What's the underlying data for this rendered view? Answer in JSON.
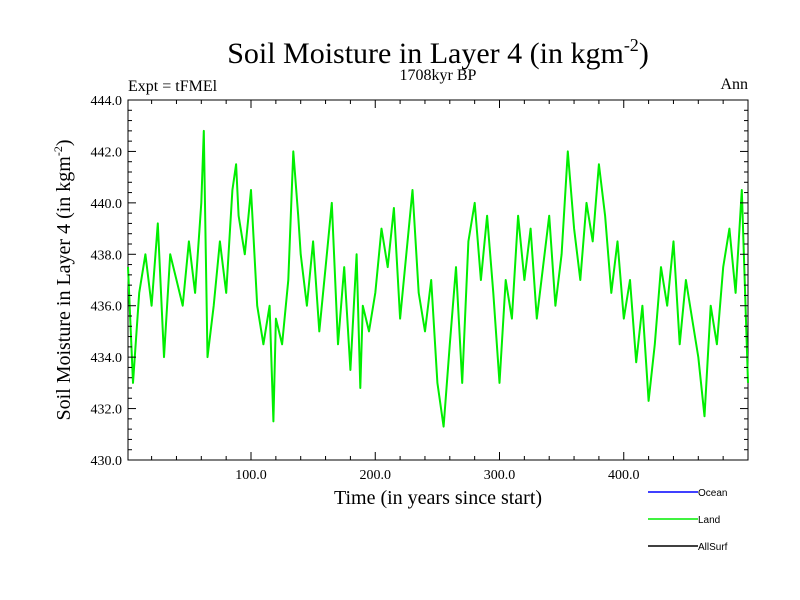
{
  "chart_data": {
    "type": "line",
    "title": "Soil Moisture in Layer 4 (in kgm",
    "title_sup": "-2",
    "title_end": ")",
    "subtitle": "1708kyr BP",
    "left_label": "Expt = tFMEl",
    "right_label": "Ann",
    "xlabel": "Time (in years since start)",
    "ylabel": "Soil Moisture in Layer 4 (in kgm",
    "ylabel_sup": "-2",
    "ylabel_end": ")",
    "xlim": [
      1,
      500
    ],
    "ylim": [
      430.0,
      444.0
    ],
    "x_ticks": [
      100,
      200,
      300,
      400
    ],
    "x_tick_labels": [
      "100.0",
      "200.0",
      "300.0",
      "400.0"
    ],
    "y_ticks": [
      430,
      432,
      434,
      436,
      438,
      440,
      442,
      444
    ],
    "y_tick_labels": [
      "430.0",
      "432.0",
      "434.0",
      "436.0",
      "438.0",
      "440.0",
      "442.0",
      "444.0"
    ],
    "grid": false,
    "legend": [
      {
        "name": "Ocean",
        "color": "#0000ff"
      },
      {
        "name": "Land",
        "color": "#00ee00"
      },
      {
        "name": "AllSurf",
        "color": "#000000"
      }
    ],
    "series": [
      {
        "name": "Land",
        "color": "#00ee00",
        "x": [
          1,
          5,
          10,
          15,
          20,
          25,
          30,
          35,
          40,
          45,
          50,
          55,
          60,
          62,
          65,
          70,
          75,
          80,
          85,
          88,
          90,
          95,
          100,
          105,
          110,
          115,
          118,
          120,
          125,
          130,
          134,
          138,
          140,
          145,
          150,
          155,
          160,
          165,
          170,
          175,
          180,
          185,
          188,
          190,
          195,
          200,
          205,
          210,
          215,
          220,
          225,
          230,
          235,
          240,
          245,
          250,
          255,
          260,
          265,
          270,
          275,
          280,
          285,
          290,
          295,
          300,
          305,
          310,
          315,
          320,
          325,
          330,
          335,
          340,
          345,
          350,
          355,
          360,
          365,
          370,
          375,
          380,
          385,
          390,
          395,
          400,
          405,
          410,
          415,
          420,
          425,
          430,
          435,
          440,
          445,
          450,
          455,
          460,
          465,
          470,
          475,
          480,
          485,
          490,
          495,
          500
        ],
        "values": [
          437.5,
          433.0,
          436.5,
          438.0,
          436.0,
          439.2,
          434.0,
          438.0,
          437.0,
          436.0,
          438.5,
          436.5,
          440.0,
          442.8,
          434.0,
          436.0,
          438.5,
          436.5,
          440.5,
          441.5,
          439.5,
          438.0,
          440.5,
          436.0,
          434.5,
          436.0,
          431.5,
          435.5,
          434.5,
          437.0,
          442.0,
          439.5,
          438.0,
          436.0,
          438.5,
          435.0,
          437.5,
          440.0,
          434.5,
          437.5,
          433.5,
          438.0,
          432.8,
          436.0,
          435.0,
          436.5,
          439.0,
          437.5,
          439.8,
          435.5,
          438.0,
          440.5,
          436.5,
          435.0,
          437.0,
          433.0,
          431.3,
          434.5,
          437.5,
          433.0,
          438.5,
          440.0,
          437.0,
          439.5,
          436.5,
          433.0,
          437.0,
          435.5,
          439.5,
          437.0,
          439.0,
          435.5,
          437.5,
          439.5,
          436.0,
          438.0,
          442.0,
          439.0,
          437.0,
          440.0,
          438.5,
          441.5,
          439.5,
          436.5,
          438.5,
          435.5,
          437.0,
          433.8,
          436.0,
          432.3,
          434.5,
          437.5,
          436.0,
          438.5,
          434.5,
          437.0,
          435.5,
          434.0,
          431.7,
          436.0,
          434.5,
          437.5,
          439.0,
          436.5,
          440.5,
          433.0
        ]
      }
    ]
  }
}
